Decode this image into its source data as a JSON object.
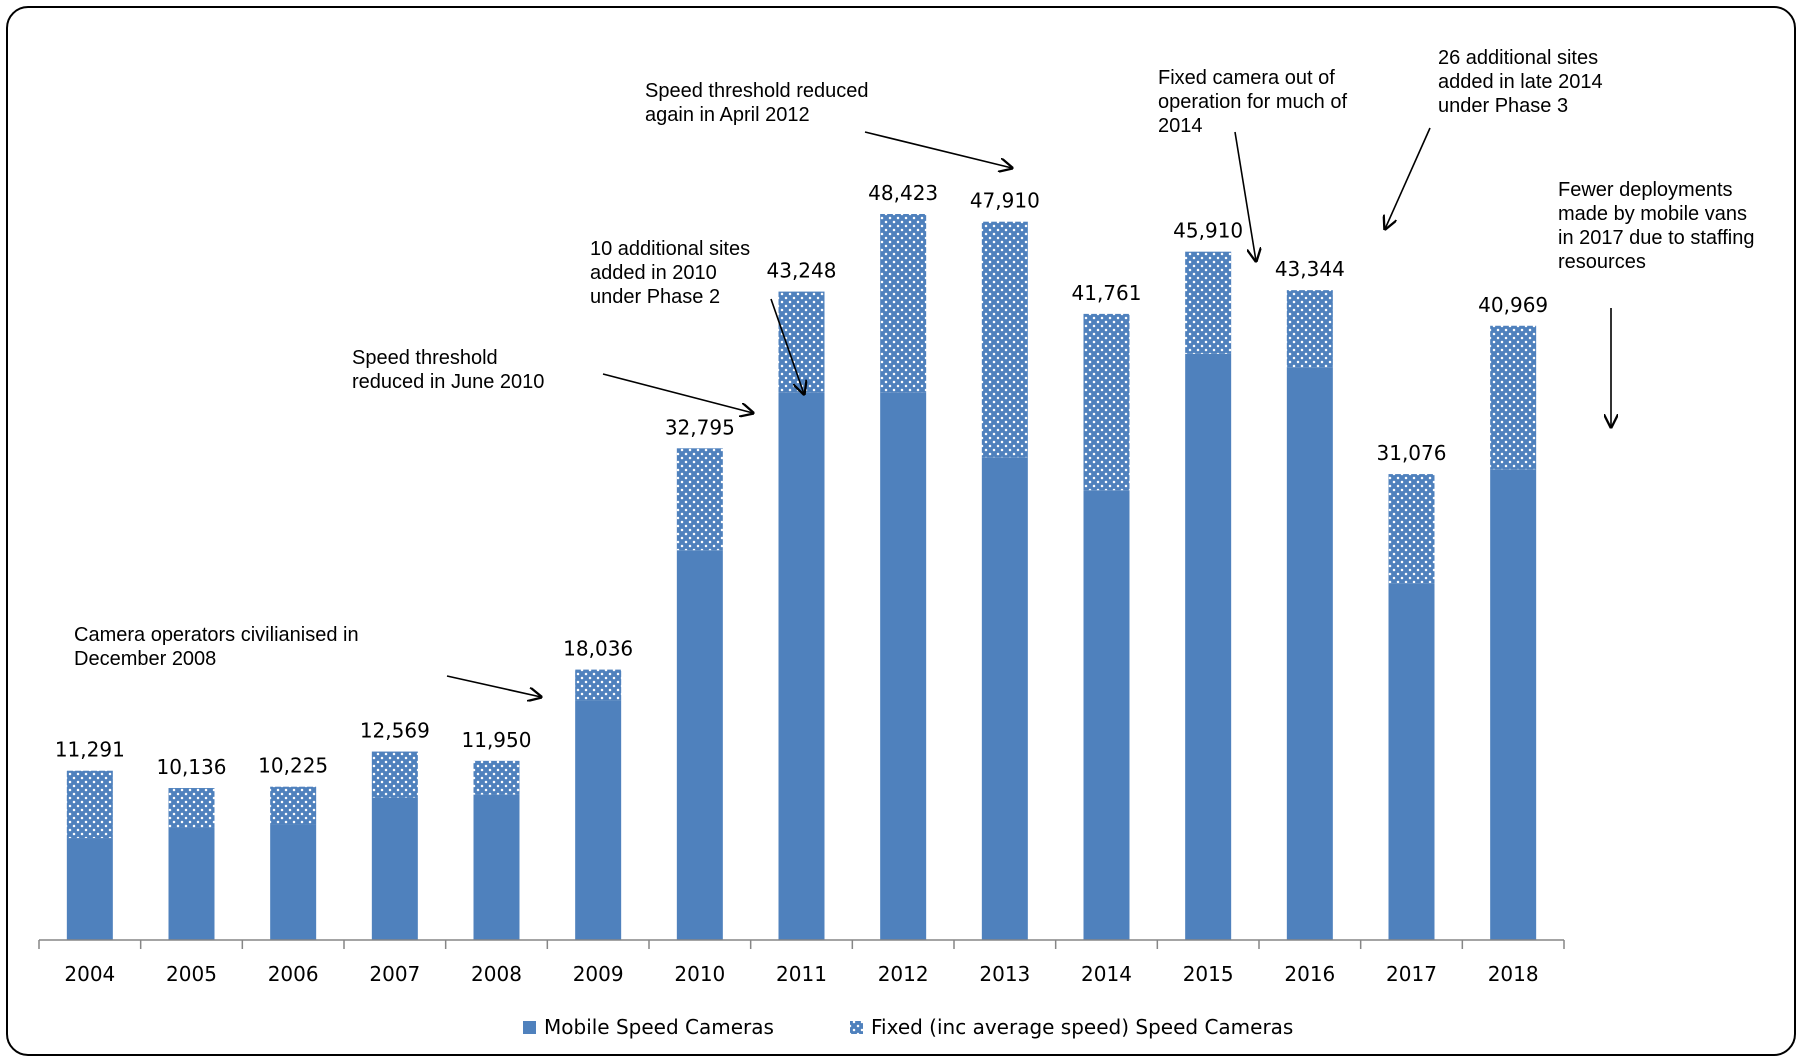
{
  "chart_data": {
    "type": "bar",
    "stacked": true,
    "title": "",
    "xlabel": "",
    "ylabel": "",
    "ylim": [
      0,
      55000
    ],
    "grid": false,
    "legend_position": "bottom",
    "categories": [
      "2004",
      "2005",
      "2006",
      "2007",
      "2008",
      "2009",
      "2010",
      "2011",
      "2012",
      "2013",
      "2014",
      "2015",
      "2016",
      "2017",
      "2018"
    ],
    "series": [
      {
        "name": "Mobile Speed Cameras",
        "color": "#4f81bd",
        "pattern": "solid",
        "values": [
          6800,
          7500,
          7700,
          9500,
          9700,
          16000,
          26000,
          36500,
          36500,
          32200,
          30000,
          39100,
          38200,
          23800,
          31400
        ]
      },
      {
        "name": "Fixed (inc average speed) Speed Cameras",
        "color": "#4f81bd",
        "pattern": "dotted",
        "values": [
          4491,
          2636,
          2525,
          3069,
          2250,
          2036,
          6795,
          6748,
          11923,
          15710,
          11761,
          6810,
          5144,
          7276,
          9569
        ]
      }
    ],
    "totals": [
      "11,291",
      "10,136",
      "10,225",
      "12,569",
      "11,950",
      "18,036",
      "32,795",
      "43,248",
      "48,423",
      "47,910",
      "41,761",
      "45,910",
      "43,344",
      "31,076",
      "40,969"
    ],
    "annotations": [
      {
        "lines": [
          "Camera operators civilianised in",
          "December 2008"
        ],
        "target_category": "2008"
      },
      {
        "lines": [
          "Speed threshold",
          "reduced in June 2010"
        ],
        "target_category": "2010"
      },
      {
        "lines": [
          "10 additional sites",
          "added in 2010",
          "under Phase 2"
        ],
        "target_category": "2010"
      },
      {
        "lines": [
          "Speed threshold reduced",
          "again in April 2012"
        ],
        "target_category": "2012"
      },
      {
        "lines": [
          "Fixed camera out of",
          "operation for much of",
          "2014"
        ],
        "target_category": "2014"
      },
      {
        "lines": [
          "26 additional sites",
          "added in late 2014",
          "under Phase 3"
        ],
        "target_category": "2015"
      },
      {
        "lines": [
          "Fewer deployments",
          "made by mobile vans",
          "in 2017 due to staffing",
          "resources"
        ],
        "target_category": "2017"
      }
    ]
  }
}
